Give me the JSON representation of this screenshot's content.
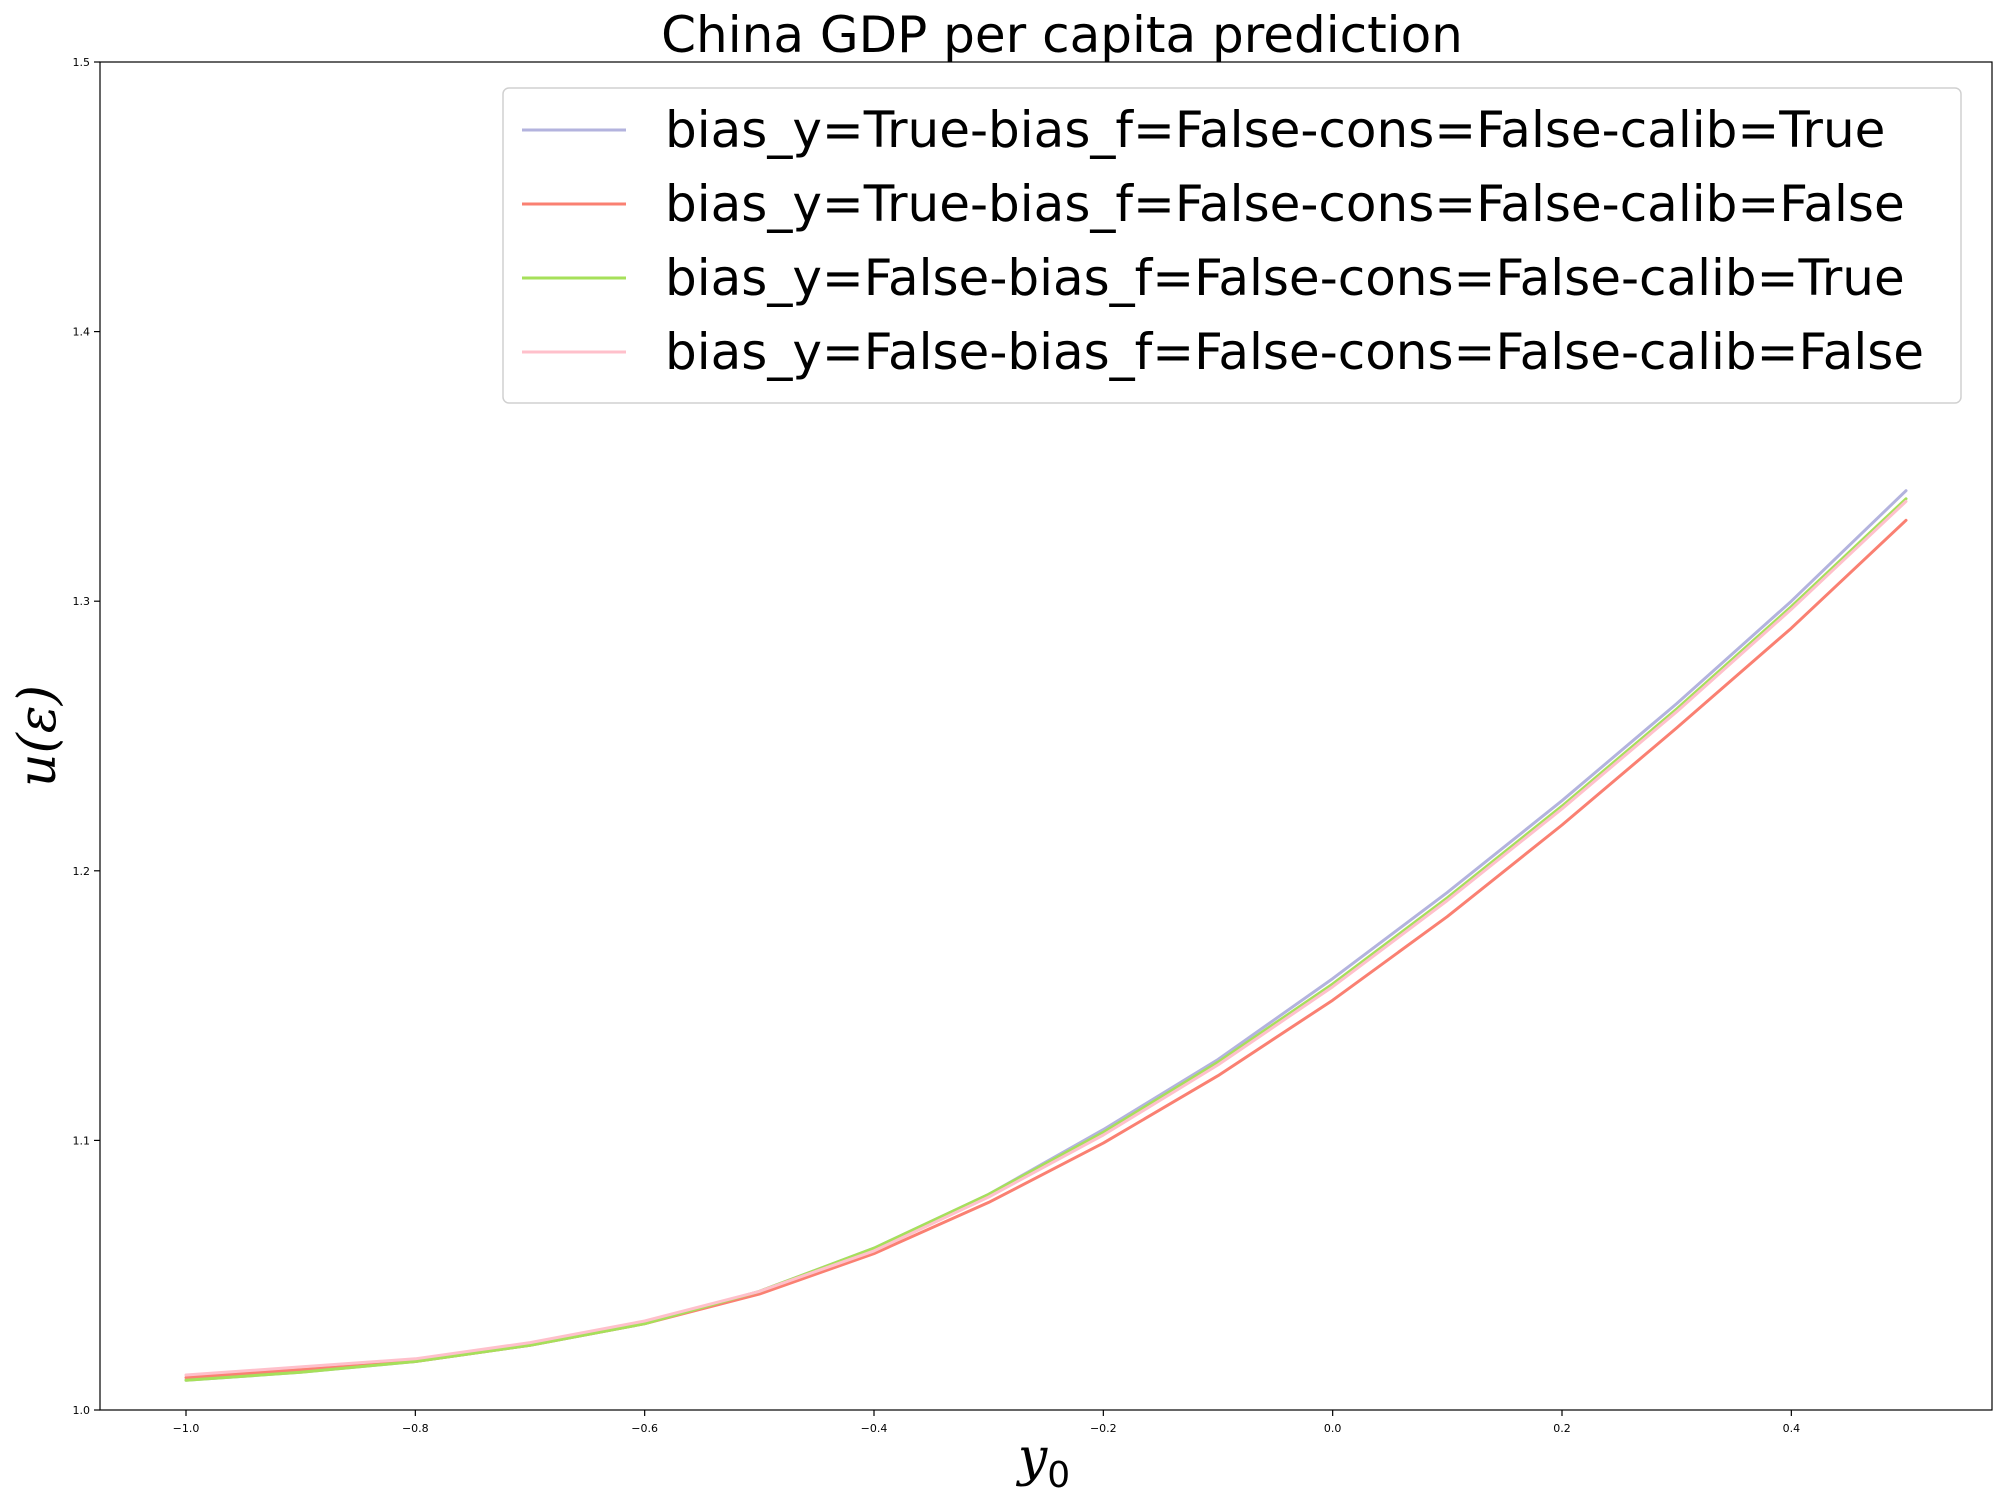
{
  "chart_data": {
    "type": "line",
    "title": "China GDP per capita prediction",
    "xlabel": "y",
    "xlabel_subscript": "0",
    "ylabel": "u(ε)",
    "xlim": [
      -1.075,
      0.575
    ],
    "ylim": [
      1.0,
      1.5
    ],
    "xticks": [
      -1.0,
      -0.8,
      -0.6,
      -0.4,
      -0.2,
      0.0,
      0.2,
      0.4
    ],
    "xtick_labels": [
      "−1.0",
      "−0.8",
      "−0.6",
      "−0.4",
      "−0.2",
      "0.0",
      "0.2",
      "0.4"
    ],
    "yticks": [
      1.0,
      1.1,
      1.2,
      1.3,
      1.4,
      1.5
    ],
    "ytick_labels": [
      "1.0",
      "1.1",
      "1.2",
      "1.3",
      "1.4",
      "1.5"
    ],
    "grid": false,
    "legend_position": "top-right",
    "x": [
      -1.0,
      -0.9,
      -0.8,
      -0.7,
      -0.6,
      -0.5,
      -0.4,
      -0.3,
      -0.2,
      -0.1,
      0.0,
      0.1,
      0.2,
      0.3,
      0.4,
      0.5
    ],
    "series": [
      {
        "name": "bias_y=True-bias_f=False-cons=False-calib=True",
        "color": "#b3b3de",
        "values": [
          1.011,
          1.014,
          1.018,
          1.024,
          1.032,
          1.044,
          1.06,
          1.08,
          1.104,
          1.13,
          1.16,
          1.192,
          1.226,
          1.262,
          1.3,
          1.341
        ]
      },
      {
        "name": "bias_y=True-bias_f=False-cons=False-calib=False",
        "color": "#fa8072",
        "values": [
          1.012,
          1.015,
          1.018,
          1.024,
          1.032,
          1.043,
          1.058,
          1.077,
          1.099,
          1.124,
          1.152,
          1.183,
          1.217,
          1.253,
          1.29,
          1.33
        ]
      },
      {
        "name": "bias_y=False-bias_f=False-cons=False-calib=True",
        "color": "#a6e05a",
        "values": [
          1.011,
          1.014,
          1.018,
          1.024,
          1.032,
          1.044,
          1.06,
          1.08,
          1.103,
          1.129,
          1.158,
          1.19,
          1.224,
          1.26,
          1.298,
          1.338
        ]
      },
      {
        "name": "bias_y=False-bias_f=False-cons=False-calib=False",
        "color": "#ffc0cb",
        "values": [
          1.013,
          1.016,
          1.019,
          1.025,
          1.033,
          1.044,
          1.059,
          1.079,
          1.102,
          1.128,
          1.157,
          1.189,
          1.223,
          1.259,
          1.297,
          1.337
        ]
      }
    ]
  }
}
